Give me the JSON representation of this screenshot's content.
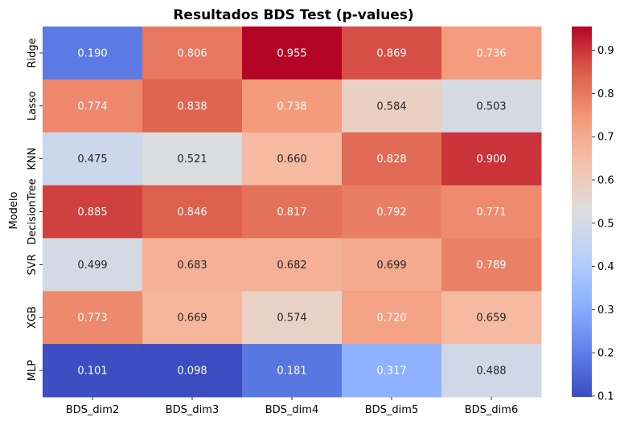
{
  "chart_data": {
    "type": "heatmap",
    "title": "Resultados BDS Test (p-values)",
    "xlabel": "",
    "ylabel": "Modelo",
    "columns": [
      "BDS_dim2",
      "BDS_dim3",
      "BDS_dim4",
      "BDS_dim5",
      "BDS_dim6"
    ],
    "rows": [
      "Ridge",
      "Lasso",
      "KNN",
      "DecisionTree",
      "SVR",
      "XGB",
      "MLP"
    ],
    "values": [
      [
        0.19,
        0.806,
        0.955,
        0.869,
        0.736
      ],
      [
        0.774,
        0.838,
        0.738,
        0.584,
        0.503
      ],
      [
        0.475,
        0.521,
        0.66,
        0.828,
        0.9
      ],
      [
        0.885,
        0.846,
        0.817,
        0.792,
        0.771
      ],
      [
        0.499,
        0.683,
        0.682,
        0.699,
        0.789
      ],
      [
        0.773,
        0.669,
        0.574,
        0.72,
        0.659
      ],
      [
        0.101,
        0.098,
        0.181,
        0.317,
        0.488
      ]
    ],
    "value_format": "3 decimals",
    "colormap": "coolwarm",
    "color_range": [
      0.098,
      0.955
    ],
    "colorbar_ticks": [
      0.1,
      0.2,
      0.3,
      0.4,
      0.5,
      0.6,
      0.7,
      0.8,
      0.9
    ],
    "annotations": true,
    "grid": false
  }
}
